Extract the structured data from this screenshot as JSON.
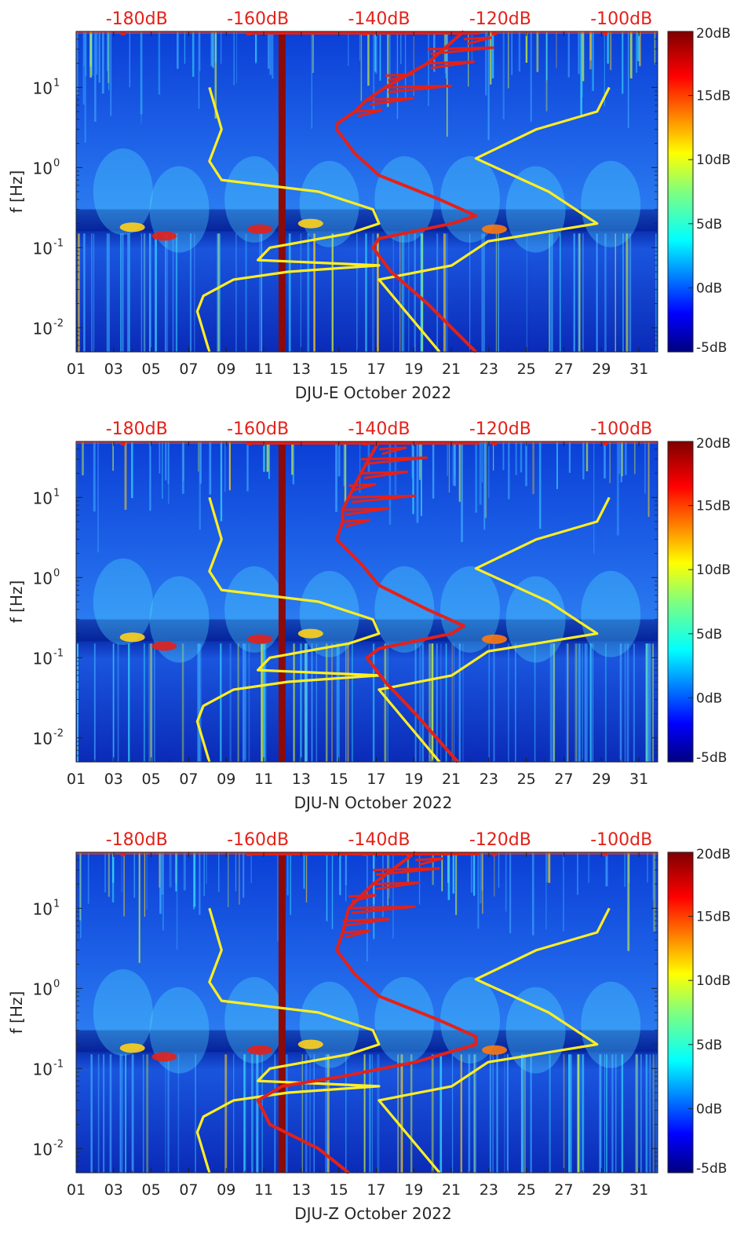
{
  "chart_data": [
    {
      "type": "heatmap",
      "station_label": "DJU-E October 2022",
      "ylabel": "f [Hz]",
      "xticks": [
        "01",
        "03",
        "05",
        "07",
        "09",
        "11",
        "13",
        "15",
        "17",
        "19",
        "21",
        "23",
        "25",
        "27",
        "29",
        "31"
      ],
      "xlim_day": [
        1,
        32
      ],
      "yticks": [
        {
          "value": 0.01,
          "label": "10",
          "exp": "-2"
        },
        {
          "value": 0.1,
          "label": "10",
          "exp": "-1"
        },
        {
          "value": 1,
          "label": "10",
          "exp": "0"
        },
        {
          "value": 10,
          "label": "10",
          "exp": "1"
        }
      ],
      "ylim_hz": [
        0.005,
        50
      ],
      "top_axis_labels": [
        "-180dB",
        "-160dB",
        "-140dB",
        "-120dB",
        "-100dB"
      ],
      "top_axis_db": [
        -180,
        -160,
        -140,
        -120,
        -100
      ],
      "top_db_range": [
        -190,
        -94
      ],
      "colorbar": {
        "labels": [
          "20dB",
          "15dB",
          "10dB",
          "5dB",
          "0dB",
          "-5dB"
        ],
        "range_db": [
          -5,
          20
        ]
      },
      "vertical_band_day": 12.0,
      "series": [
        {
          "name": "noise-model-high",
          "color": "#ffee22",
          "points": [
            [
              0.005,
              -168
            ],
            [
              0.016,
              -170
            ],
            [
              0.025,
              -169
            ],
            [
              0.04,
              -164
            ],
            [
              0.05,
              -155
            ],
            [
              0.06,
              -140
            ],
            [
              0.07,
              -160
            ],
            [
              0.1,
              -158
            ],
            [
              0.15,
              -145
            ],
            [
              0.2,
              -140
            ],
            [
              0.3,
              -141
            ],
            [
              0.5,
              -150
            ],
            [
              0.7,
              -166
            ],
            [
              1.2,
              -168
            ],
            [
              3,
              -166
            ],
            [
              10,
              -168
            ]
          ]
        },
        {
          "name": "noise-model-low",
          "color": "#ffee22",
          "points": [
            [
              0.005,
              -130
            ],
            [
              0.04,
              -140
            ],
            [
              0.06,
              -128
            ],
            [
              0.12,
              -122
            ],
            [
              0.2,
              -104
            ],
            [
              0.5,
              -112
            ],
            [
              1.3,
              -124
            ],
            [
              3,
              -114
            ],
            [
              5,
              -104
            ],
            [
              10,
              -102
            ]
          ]
        },
        {
          "name": "psd-median",
          "color": "#e32119",
          "points": [
            [
              0.005,
              -124
            ],
            [
              0.02,
              -132
            ],
            [
              0.05,
              -138
            ],
            [
              0.1,
              -141
            ],
            [
              0.13,
              -140
            ],
            [
              0.2,
              -128
            ],
            [
              0.25,
              -124
            ],
            [
              0.4,
              -130
            ],
            [
              0.8,
              -140
            ],
            [
              1.5,
              -144
            ],
            [
              3,
              -147
            ],
            [
              3.5,
              -147
            ],
            [
              5,
              -144
            ],
            [
              7,
              -142
            ],
            [
              10,
              -139
            ],
            [
              20,
              -132
            ],
            [
              50,
              -126
            ]
          ]
        }
      ]
    },
    {
      "type": "heatmap",
      "station_label": "DJU-N October 2022",
      "ylabel": "f [Hz]",
      "xticks": [
        "01",
        "03",
        "05",
        "07",
        "09",
        "11",
        "13",
        "15",
        "17",
        "19",
        "21",
        "23",
        "25",
        "27",
        "29",
        "31"
      ],
      "xlim_day": [
        1,
        32
      ],
      "yticks": [
        {
          "value": 0.01,
          "label": "10",
          "exp": "-2"
        },
        {
          "value": 0.1,
          "label": "10",
          "exp": "-1"
        },
        {
          "value": 1,
          "label": "10",
          "exp": "0"
        },
        {
          "value": 10,
          "label": "10",
          "exp": "1"
        }
      ],
      "ylim_hz": [
        0.005,
        50
      ],
      "top_axis_labels": [
        "-180dB",
        "-160dB",
        "-140dB",
        "-120dB",
        "-100dB"
      ],
      "top_axis_db": [
        -180,
        -160,
        -140,
        -120,
        -100
      ],
      "top_db_range": [
        -190,
        -94
      ],
      "colorbar": {
        "labels": [
          "20dB",
          "15dB",
          "10dB",
          "5dB",
          "0dB",
          "-5dB"
        ],
        "range_db": [
          -5,
          20
        ]
      },
      "vertical_band_day": 12.0,
      "series": [
        {
          "name": "noise-model-high",
          "color": "#ffee22",
          "points": [
            [
              0.005,
              -168
            ],
            [
              0.016,
              -170
            ],
            [
              0.025,
              -169
            ],
            [
              0.04,
              -164
            ],
            [
              0.05,
              -155
            ],
            [
              0.06,
              -140
            ],
            [
              0.07,
              -160
            ],
            [
              0.1,
              -158
            ],
            [
              0.15,
              -145
            ],
            [
              0.2,
              -140
            ],
            [
              0.3,
              -141
            ],
            [
              0.5,
              -150
            ],
            [
              0.7,
              -166
            ],
            [
              1.2,
              -168
            ],
            [
              3,
              -166
            ],
            [
              10,
              -168
            ]
          ]
        },
        {
          "name": "noise-model-low",
          "color": "#ffee22",
          "points": [
            [
              0.005,
              -130
            ],
            [
              0.04,
              -140
            ],
            [
              0.06,
              -128
            ],
            [
              0.12,
              -122
            ],
            [
              0.2,
              -104
            ],
            [
              0.5,
              -112
            ],
            [
              1.3,
              -124
            ],
            [
              3,
              -114
            ],
            [
              5,
              -104
            ],
            [
              10,
              -102
            ]
          ]
        },
        {
          "name": "psd-median",
          "color": "#e32119",
          "points": [
            [
              0.005,
              -127
            ],
            [
              0.02,
              -134
            ],
            [
              0.05,
              -139
            ],
            [
              0.1,
              -142
            ],
            [
              0.13,
              -140
            ],
            [
              0.2,
              -128
            ],
            [
              0.25,
              -126
            ],
            [
              0.4,
              -132
            ],
            [
              0.8,
              -140
            ],
            [
              1.5,
              -143
            ],
            [
              3,
              -147
            ],
            [
              5,
              -146
            ],
            [
              7,
              -146
            ],
            [
              10,
              -145
            ],
            [
              20,
              -143
            ],
            [
              50,
              -140
            ]
          ]
        }
      ]
    },
    {
      "type": "heatmap",
      "station_label": "DJU-Z October 2022",
      "ylabel": "f [Hz]",
      "xticks": [
        "01",
        "03",
        "05",
        "07",
        "09",
        "11",
        "13",
        "15",
        "17",
        "19",
        "21",
        "23",
        "25",
        "27",
        "29",
        "31"
      ],
      "xlim_day": [
        1,
        32
      ],
      "yticks": [
        {
          "value": 0.01,
          "label": "10",
          "exp": "-2"
        },
        {
          "value": 0.1,
          "label": "10",
          "exp": "-1"
        },
        {
          "value": 1,
          "label": "10",
          "exp": "0"
        },
        {
          "value": 10,
          "label": "10",
          "exp": "1"
        }
      ],
      "ylim_hz": [
        0.005,
        50
      ],
      "top_axis_labels": [
        "-180dB",
        "-160dB",
        "-140dB",
        "-120dB",
        "-100dB"
      ],
      "top_axis_db": [
        -180,
        -160,
        -140,
        -120,
        -100
      ],
      "top_db_range": [
        -190,
        -94
      ],
      "colorbar": {
        "labels": [
          "20dB",
          "15dB",
          "10dB",
          "5dB",
          "0dB",
          "-5dB"
        ],
        "range_db": [
          -5,
          20
        ]
      },
      "vertical_band_day": 12.0,
      "series": [
        {
          "name": "noise-model-high",
          "color": "#ffee22",
          "points": [
            [
              0.005,
              -168
            ],
            [
              0.016,
              -170
            ],
            [
              0.025,
              -169
            ],
            [
              0.04,
              -164
            ],
            [
              0.05,
              -155
            ],
            [
              0.06,
              -140
            ],
            [
              0.07,
              -160
            ],
            [
              0.1,
              -158
            ],
            [
              0.15,
              -145
            ],
            [
              0.2,
              -140
            ],
            [
              0.3,
              -141
            ],
            [
              0.5,
              -150
            ],
            [
              0.7,
              -166
            ],
            [
              1.2,
              -168
            ],
            [
              3,
              -166
            ],
            [
              10,
              -168
            ]
          ]
        },
        {
          "name": "noise-model-low",
          "color": "#ffee22",
          "points": [
            [
              0.005,
              -130
            ],
            [
              0.04,
              -140
            ],
            [
              0.06,
              -128
            ],
            [
              0.12,
              -122
            ],
            [
              0.2,
              -104
            ],
            [
              0.5,
              -112
            ],
            [
              1.3,
              -124
            ],
            [
              3,
              -114
            ],
            [
              5,
              -104
            ],
            [
              10,
              -102
            ]
          ]
        },
        {
          "name": "psd-median",
          "color": "#e32119",
          "points": [
            [
              0.005,
              -145
            ],
            [
              0.01,
              -150
            ],
            [
              0.02,
              -158
            ],
            [
              0.04,
              -160
            ],
            [
              0.06,
              -156
            ],
            [
              0.08,
              -146
            ],
            [
              0.12,
              -134
            ],
            [
              0.2,
              -124
            ],
            [
              0.25,
              -124
            ],
            [
              0.4,
              -130
            ],
            [
              0.8,
              -140
            ],
            [
              1.5,
              -144
            ],
            [
              3,
              -147
            ],
            [
              5,
              -146
            ],
            [
              10,
              -145
            ],
            [
              20,
              -141
            ],
            [
              50,
              -134
            ]
          ]
        }
      ]
    }
  ]
}
